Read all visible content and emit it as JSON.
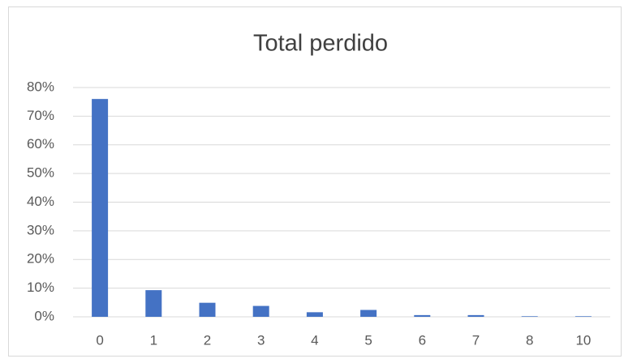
{
  "chart_data": {
    "type": "bar",
    "title": "Total perdido",
    "categories": [
      "0",
      "1",
      "2",
      "3",
      "4",
      "5",
      "6",
      "7",
      "8",
      "10"
    ],
    "values": [
      76,
      9.3,
      4.9,
      3.8,
      1.6,
      2.4,
      0.6,
      0.6,
      0.2,
      0.2
    ],
    "color": "#4472c4",
    "ylim": [
      0,
      80
    ],
    "yticks": [
      {
        "value": 0,
        "label": "0%"
      },
      {
        "value": 10,
        "label": "10%"
      },
      {
        "value": 20,
        "label": "20%"
      },
      {
        "value": 30,
        "label": "30%"
      },
      {
        "value": 40,
        "label": "40%"
      },
      {
        "value": 50,
        "label": "50%"
      },
      {
        "value": 60,
        "label": "60%"
      },
      {
        "value": 70,
        "label": "70%"
      },
      {
        "value": 80,
        "label": "80%"
      }
    ],
    "grid": true
  }
}
